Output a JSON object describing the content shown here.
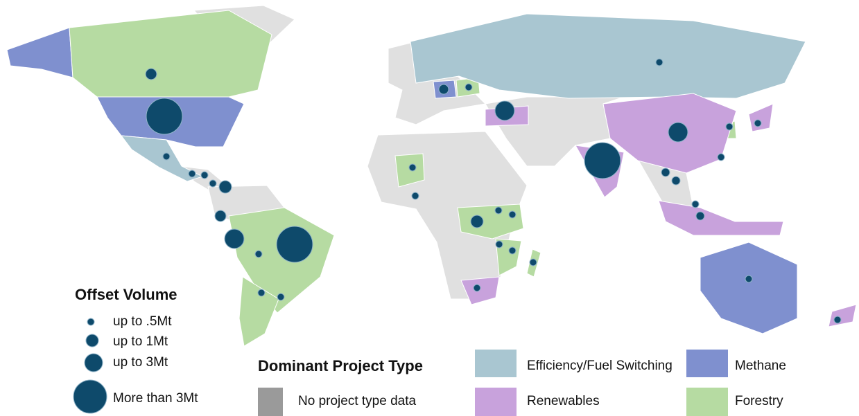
{
  "legend_volume": {
    "title": "Offset Volume",
    "items": [
      "up to .5Mt",
      "up to 1Mt",
      "up to 3Mt",
      "More than 3Mt"
    ]
  },
  "legend_type": {
    "title": "Dominant Project Type",
    "items": [
      {
        "label": "No project type data",
        "color": "#9a9a9a"
      },
      {
        "label": "Efficiency/Fuel Switching",
        "color": "#a9c6d1"
      },
      {
        "label": "Renewables",
        "color": "#c8a2dc"
      },
      {
        "label": "Methane",
        "color": "#7f90cf"
      },
      {
        "label": "Forestry",
        "color": "#b6dba2"
      }
    ]
  }
}
